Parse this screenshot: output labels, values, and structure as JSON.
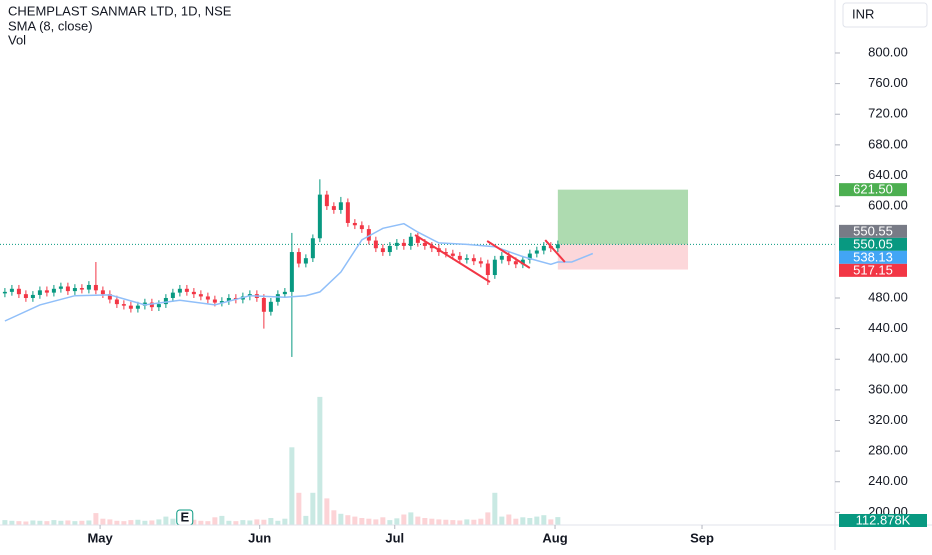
{
  "chart_data": {
    "type": "candlestick",
    "title": "CHEMPLAST SANMAR LTD, 1D, NSE",
    "indicator_label": "SMA (8, close)",
    "volume_label_title": "Vol",
    "currency": "INR",
    "colors": {
      "up": "#089981",
      "down": "#f23645",
      "sma": "#90bff9",
      "trendline": "#f23645"
    },
    "xlim": [
      -0.7,
      118.6
    ],
    "xticks": [
      {
        "value": 13.6,
        "label": "May"
      },
      {
        "value": 36.4,
        "label": "Jun"
      },
      {
        "value": 55.7,
        "label": "Jul"
      },
      {
        "value": 78.6,
        "label": "Aug"
      },
      {
        "value": 99.6,
        "label": "Sep"
      }
    ],
    "ylim": [
      183.5,
      869.2
    ],
    "yticks": [
      {
        "value": 800,
        "label": "800.00"
      },
      {
        "value": 760,
        "label": "760.00"
      },
      {
        "value": 720,
        "label": "720.00"
      },
      {
        "value": 680,
        "label": "680.00"
      },
      {
        "value": 640,
        "label": "640.00"
      },
      {
        "value": 600,
        "label": "600.00"
      },
      {
        "value": 480,
        "label": "480.00"
      },
      {
        "value": 440,
        "label": "440.00"
      },
      {
        "value": 400,
        "label": "400.00"
      },
      {
        "value": 360,
        "label": "360.00"
      },
      {
        "value": 320,
        "label": "320.00"
      },
      {
        "value": 280,
        "label": "280.00"
      },
      {
        "value": 240,
        "label": "240.00"
      },
      {
        "value": 200,
        "label": "200.00"
      }
    ],
    "y2lim": [
      0,
      7500
    ],
    "open": [
      486,
      488,
      492,
      485,
      480,
      484,
      490,
      487,
      492,
      495,
      489,
      493,
      491,
      497,
      490,
      485,
      478,
      472,
      470,
      466,
      470,
      474,
      468,
      472,
      480,
      487,
      492,
      488,
      485,
      482,
      478,
      474,
      476,
      480,
      478,
      482,
      485,
      480,
      462,
      475,
      485,
      488,
      540,
      525,
      532,
      558,
      615,
      600,
      595,
      605,
      578,
      575,
      570,
      555,
      545,
      540,
      548,
      552,
      548,
      560,
      552,
      548,
      545,
      540,
      538,
      535,
      530,
      532,
      528,
      525,
      510,
      530,
      535,
      528,
      524,
      530,
      538,
      542,
      548,
      545
    ],
    "high": [
      493,
      497,
      497,
      490,
      489,
      495,
      495,
      497,
      500,
      500,
      498,
      498,
      502,
      527,
      495,
      490,
      483,
      477,
      475,
      475,
      479,
      479,
      477,
      485,
      492,
      497,
      497,
      493,
      490,
      487,
      483,
      481,
      485,
      485,
      487,
      490,
      490,
      485,
      480,
      490,
      493,
      565,
      545,
      537,
      563,
      635,
      620,
      605,
      612,
      610,
      583,
      580,
      575,
      560,
      550,
      553,
      557,
      557,
      565,
      565,
      557,
      553,
      550,
      545,
      543,
      540,
      537,
      537,
      533,
      530,
      535,
      540,
      540,
      533,
      535,
      543,
      547,
      553,
      553,
      555
    ],
    "low": [
      481,
      483,
      480,
      475,
      475,
      479,
      482,
      482,
      487,
      484,
      484,
      486,
      486,
      485,
      480,
      473,
      467,
      465,
      461,
      461,
      465,
      463,
      463,
      467,
      475,
      482,
      483,
      480,
      477,
      473,
      469,
      469,
      471,
      473,
      473,
      477,
      475,
      440,
      457,
      470,
      480,
      403,
      520,
      520,
      527,
      553,
      595,
      590,
      590,
      573,
      570,
      565,
      550,
      540,
      535,
      535,
      543,
      543,
      543,
      547,
      543,
      540,
      535,
      533,
      530,
      525,
      525,
      523,
      520,
      497,
      505,
      525,
      523,
      519,
      519,
      525,
      533,
      537,
      540,
      540
    ],
    "close": [
      488,
      492,
      485,
      480,
      484,
      490,
      487,
      492,
      495,
      489,
      493,
      491,
      497,
      490,
      485,
      478,
      472,
      470,
      466,
      470,
      474,
      468,
      472,
      480,
      487,
      492,
      488,
      485,
      482,
      478,
      474,
      476,
      480,
      478,
      482,
      485,
      480,
      462,
      475,
      485,
      488,
      540,
      525,
      532,
      558,
      615,
      600,
      595,
      605,
      578,
      575,
      570,
      555,
      545,
      540,
      548,
      552,
      548,
      560,
      552,
      548,
      545,
      540,
      538,
      535,
      530,
      532,
      528,
      525,
      510,
      530,
      535,
      528,
      524,
      530,
      538,
      542,
      548,
      545,
      550.05
    ],
    "volume": [
      70,
      60,
      55,
      50,
      65,
      60,
      55,
      70,
      60,
      65,
      55,
      60,
      65,
      170,
      90,
      80,
      60,
      55,
      70,
      75,
      60,
      65,
      80,
      120,
      90,
      70,
      150,
      75,
      60,
      55,
      110,
      130,
      60,
      55,
      70,
      65,
      80,
      75,
      100,
      60,
      90,
      1110,
      460,
      130,
      460,
      1830,
      380,
      210,
      160,
      140,
      120,
      100,
      90,
      80,
      110,
      70,
      95,
      150,
      180,
      120,
      100,
      90,
      80,
      75,
      70,
      65,
      80,
      75,
      90,
      180,
      460,
      120,
      150,
      90,
      110,
      100,
      120,
      140,
      80,
      112.878
    ],
    "volume_value_label": "112.878K",
    "sma": {
      "x": [
        0,
        5,
        10,
        15,
        20,
        25,
        30,
        35,
        40,
        43,
        45,
        48,
        51,
        54,
        57,
        59,
        62,
        66,
        70,
        74,
        78,
        79,
        81,
        84
      ],
      "values": [
        450,
        471,
        483,
        484,
        471,
        477,
        471,
        483,
        481,
        483,
        488,
        514,
        556,
        571,
        577,
        566,
        552,
        550,
        547,
        534,
        524,
        527,
        527,
        538.13
      ]
    },
    "trendlines": [
      {
        "x": [
          58.6,
          69.3
        ],
        "values": [
          562.3,
          500.9
        ]
      },
      {
        "x": [
          68.9,
          75
        ],
        "values": [
          554.4,
          519.2
        ]
      },
      {
        "x": [
          77.2,
          80
        ],
        "values": [
          555.7,
          527
        ]
      }
    ],
    "position": {
      "x": [
        79,
        97.6
      ],
      "entry": 550.05,
      "target": 621.5,
      "stop": 517.15
    },
    "events": [
      {
        "x": 25.7,
        "label": "E"
      }
    ],
    "price_labels": [
      {
        "value": 621.5,
        "label": "621.50",
        "color": "#4caf50"
      },
      {
        "value": 550.55,
        "label": "550.55",
        "color": "#787b86"
      },
      {
        "value": 550.05,
        "label": "550.05",
        "color": "#089981"
      },
      {
        "value": 538.13,
        "label": "538.13",
        "color": "#42a5f5"
      },
      {
        "value": 517.15,
        "label": "517.15",
        "color": "#f23645"
      }
    ]
  }
}
